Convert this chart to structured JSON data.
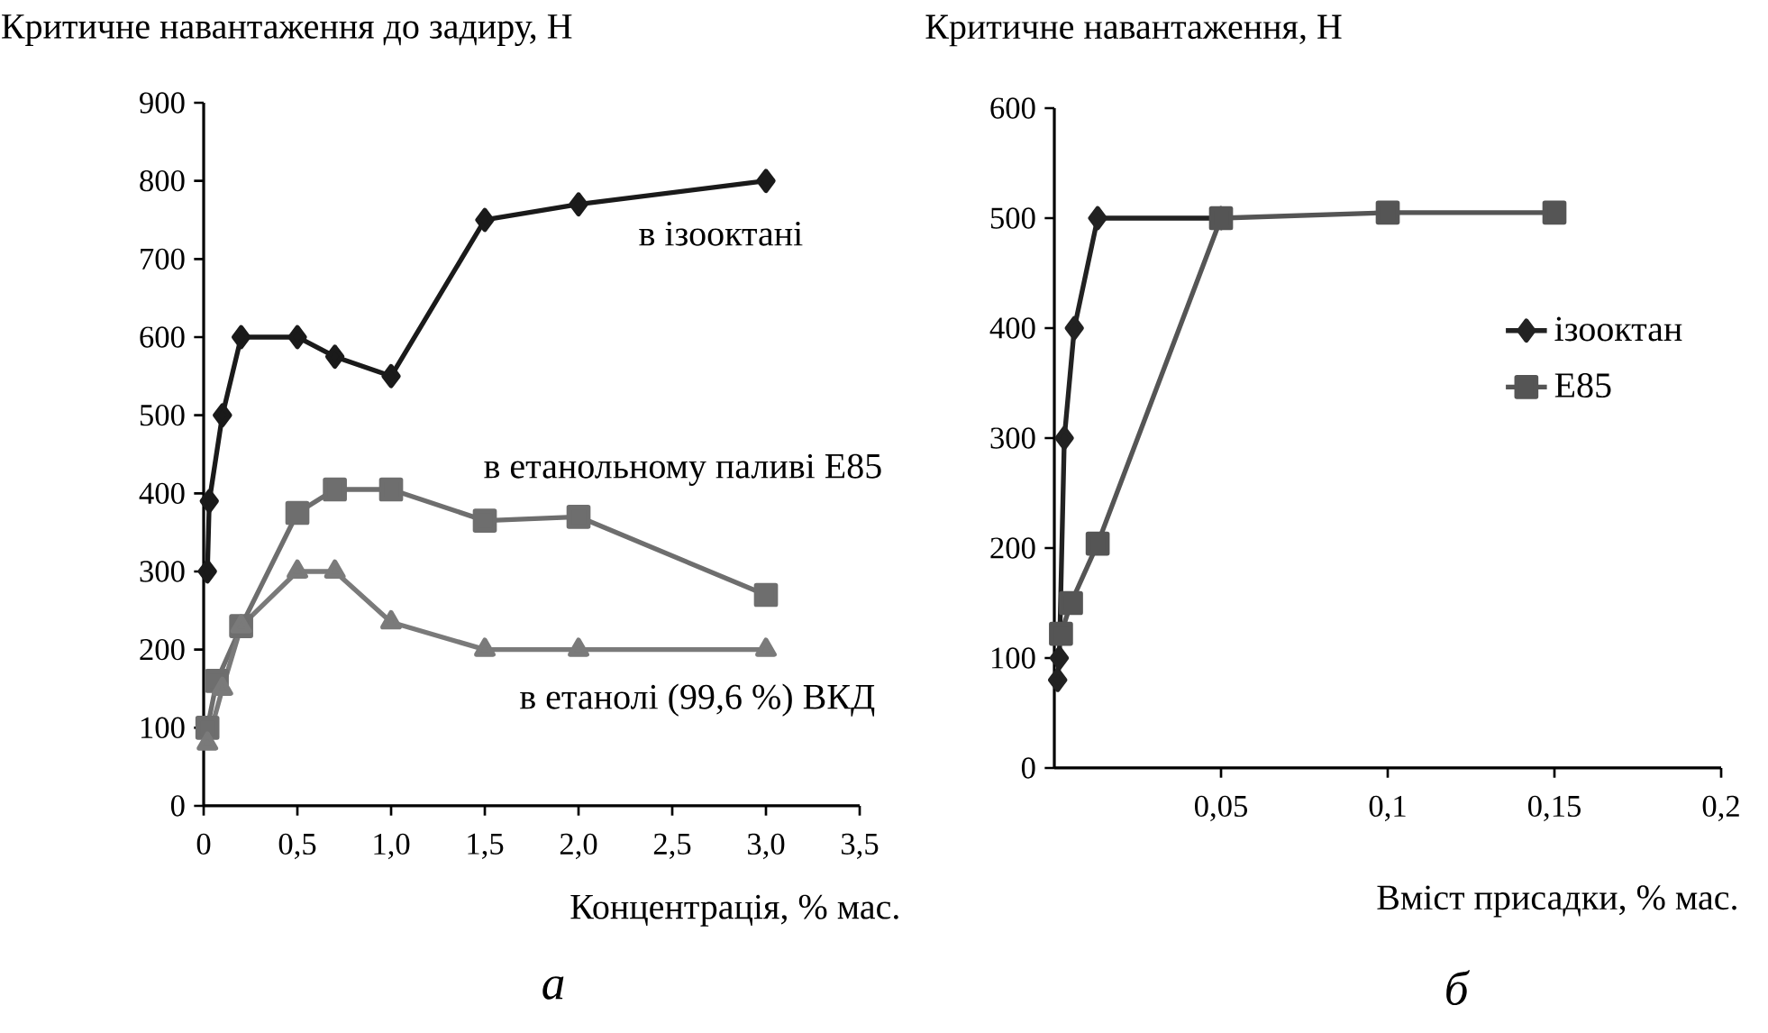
{
  "chart_data": [
    {
      "type": "line",
      "ylabel": "Критичне навантаження до задиру, Н",
      "xlabel": "Концентрація, % мас.",
      "annotations": [
        "а"
      ],
      "xlim": [
        0,
        3.5
      ],
      "ylim": [
        0,
        900
      ],
      "xticks": [
        0,
        {
          "value": 0.5,
          "label": "0,5"
        },
        {
          "value": 1.0,
          "label": "1,0"
        },
        {
          "value": 1.5,
          "label": "1,5"
        },
        {
          "value": 2.0,
          "label": "2,0"
        },
        {
          "value": 2.5,
          "label": "2,5"
        },
        {
          "value": 3.0,
          "label": "3,0"
        },
        {
          "value": 3.5,
          "label": "3,5"
        }
      ],
      "yticks": [
        0,
        100,
        200,
        300,
        400,
        500,
        600,
        700,
        800,
        900
      ],
      "legend": false,
      "grid": false,
      "series": [
        {
          "name": "в ізооктані",
          "color": "#1a1a1a",
          "marker": "diamond",
          "x": [
            0.02,
            0.03,
            0.1,
            0.2,
            0.5,
            0.7,
            1.0,
            1.5,
            2.0,
            3.0
          ],
          "values": [
            300,
            390,
            500,
            600,
            600,
            575,
            550,
            750,
            770,
            800
          ]
        },
        {
          "name": "в етанольному паливі Е85",
          "color": "#6e6e6e",
          "marker": "square",
          "x": [
            0.02,
            0.07,
            0.2,
            0.5,
            0.7,
            1.0,
            1.5,
            2.0,
            3.0
          ],
          "values": [
            100,
            160,
            230,
            375,
            405,
            405,
            365,
            370,
            270
          ]
        },
        {
          "name": "в етанолі (99,6 %) ВКД",
          "color": "#7a7a7a",
          "marker": "triangle",
          "x": [
            0.02,
            0.1,
            0.2,
            0.5,
            0.7,
            1.0,
            1.5,
            2.0,
            3.0
          ],
          "values": [
            80,
            150,
            230,
            300,
            300,
            235,
            200,
            200,
            200
          ]
        }
      ]
    },
    {
      "type": "line",
      "ylabel": "Критичне навантаження, Н",
      "xlabel": "Вміст присадки, % мас.",
      "annotations": [
        "б"
      ],
      "xlim": [
        0,
        0.2
      ],
      "ylim": [
        0,
        600
      ],
      "xticks": [
        {
          "value": 0.05,
          "label": "0,05"
        },
        {
          "value": 0.1,
          "label": "0,1"
        },
        {
          "value": 0.15,
          "label": "0,15"
        },
        {
          "value": 0.2,
          "label": "0,2"
        }
      ],
      "yticks": [
        0,
        100,
        200,
        300,
        400,
        500,
        600
      ],
      "legend": "right",
      "grid": false,
      "series": [
        {
          "name": "ізооктан",
          "color": "#222222",
          "marker": "diamond",
          "x": [
            0.001,
            0.0015,
            0.003,
            0.006,
            0.013,
            0.05
          ],
          "values": [
            80,
            100,
            300,
            400,
            500,
            500
          ]
        },
        {
          "name": "Е85",
          "color": "#555555",
          "marker": "square",
          "x": [
            0.002,
            0.005,
            0.013,
            0.05,
            0.1,
            0.15
          ],
          "values": [
            122,
            150,
            204,
            500,
            505,
            505
          ]
        }
      ]
    }
  ]
}
